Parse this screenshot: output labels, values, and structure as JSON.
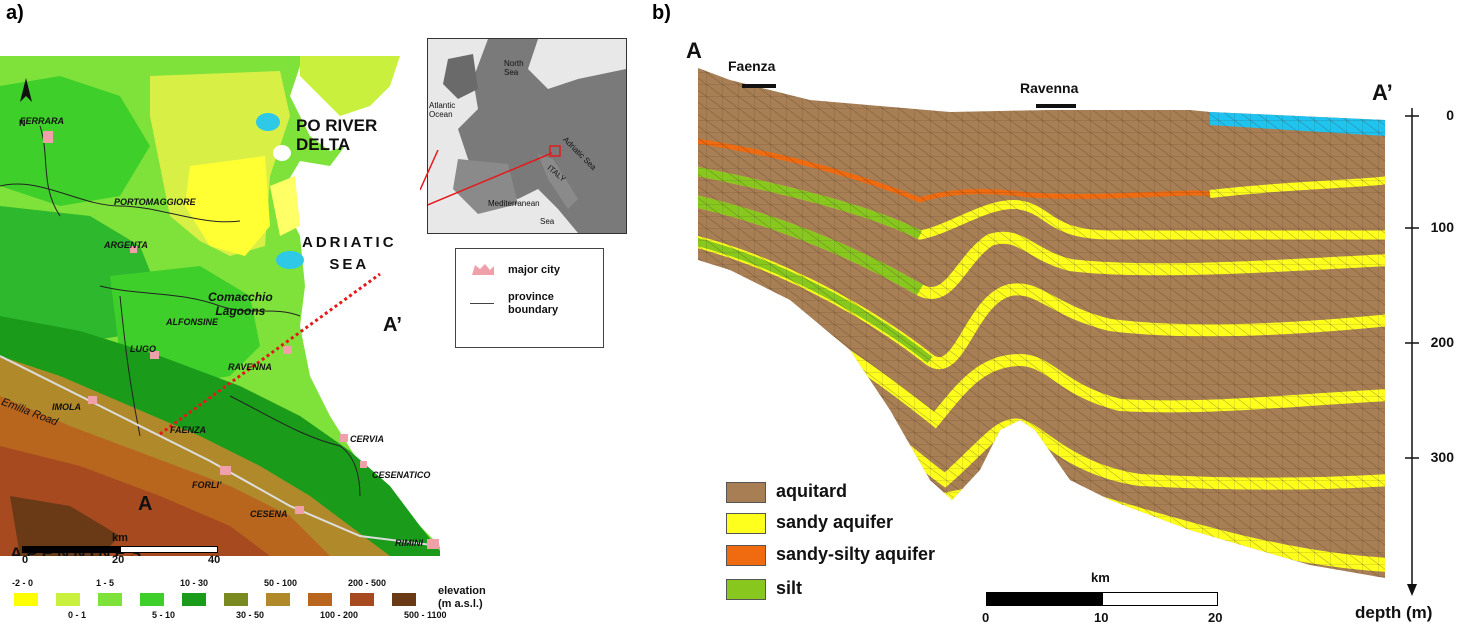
{
  "panels": {
    "a": "a)",
    "b": "b)"
  },
  "map": {
    "north": "N",
    "po_delta": [
      "PO RIVER",
      "DELTA"
    ],
    "sea": [
      "ADRIATIC",
      "SEA"
    ],
    "comacchio": [
      "Comacchio",
      "Lagoons"
    ],
    "apennines": "APENNINES",
    "emilia_road": "Emilia Road",
    "section_start": "A",
    "section_end": "A’",
    "cities": [
      "FERRARA",
      "PORTOMAGGIORE",
      "ARGENTA",
      "ALFONSINE",
      "LUGO",
      "RAVENNA",
      "IMOLA",
      "FAENZA",
      "FORLI’",
      "CESENA",
      "CERVIA",
      "CESENATICO",
      "RIMINI"
    ],
    "colors": {
      "lowland": "#7fe23a",
      "mid": "#2db82d",
      "yellow": "#ffff33",
      "hills": "#a05a2c",
      "sea": "#ffffff",
      "lake": "#2ec9e6"
    }
  },
  "inset": {
    "labels": {
      "north_sea": [
        "North",
        "Sea"
      ],
      "atlantic": [
        "Atlantic",
        "Ocean"
      ],
      "adriatic": "Adriatic Sea",
      "italy": "ITALY",
      "mediterranean": "Mediterranean",
      "sea": "Sea"
    }
  },
  "map_legend": {
    "major_city": "major city",
    "province": [
      "province",
      "boundary"
    ]
  },
  "map_scale": {
    "unit": "km",
    "ticks": [
      "0",
      "20",
      "40"
    ]
  },
  "elevation_legend": {
    "title": [
      "elevation",
      "(m a.s.l.)"
    ],
    "classes": [
      {
        "label": "-2 - 0",
        "color": "#ffff00"
      },
      {
        "label": "0 - 1",
        "color": "#c8f03c"
      },
      {
        "label": "1 - 5",
        "color": "#7fe23a"
      },
      {
        "label": "5 - 10",
        "color": "#3fcf2a"
      },
      {
        "label": "10 - 30",
        "color": "#1a9c1a"
      },
      {
        "label": "30 - 50",
        "color": "#7a8a20"
      },
      {
        "label": "50 - 100",
        "color": "#b08a2a"
      },
      {
        "label": "100 - 200",
        "color": "#b8661e"
      },
      {
        "label": "200 - 500",
        "color": "#a84a20"
      },
      {
        "label": "500 - 1100",
        "color": "#6a3a16"
      }
    ]
  },
  "cross_section": {
    "start": "A",
    "end": "A’",
    "towns": [
      "Faenza",
      "Ravenna"
    ],
    "depth_axis": {
      "title": "depth (m)",
      "ticks": [
        "0",
        "100",
        "200",
        "300"
      ]
    },
    "legend": [
      {
        "label": "aquitard",
        "color": "#a87f55"
      },
      {
        "label": "sandy aquifer",
        "color": "#ffff1e"
      },
      {
        "label": "sandy-silty aquifer",
        "color": "#f06a10"
      },
      {
        "label": "silt",
        "color": "#88c81e"
      }
    ],
    "scale": {
      "unit": "km",
      "ticks": [
        "0",
        "10",
        "20"
      ]
    },
    "sea_color": "#1fc3f0"
  }
}
